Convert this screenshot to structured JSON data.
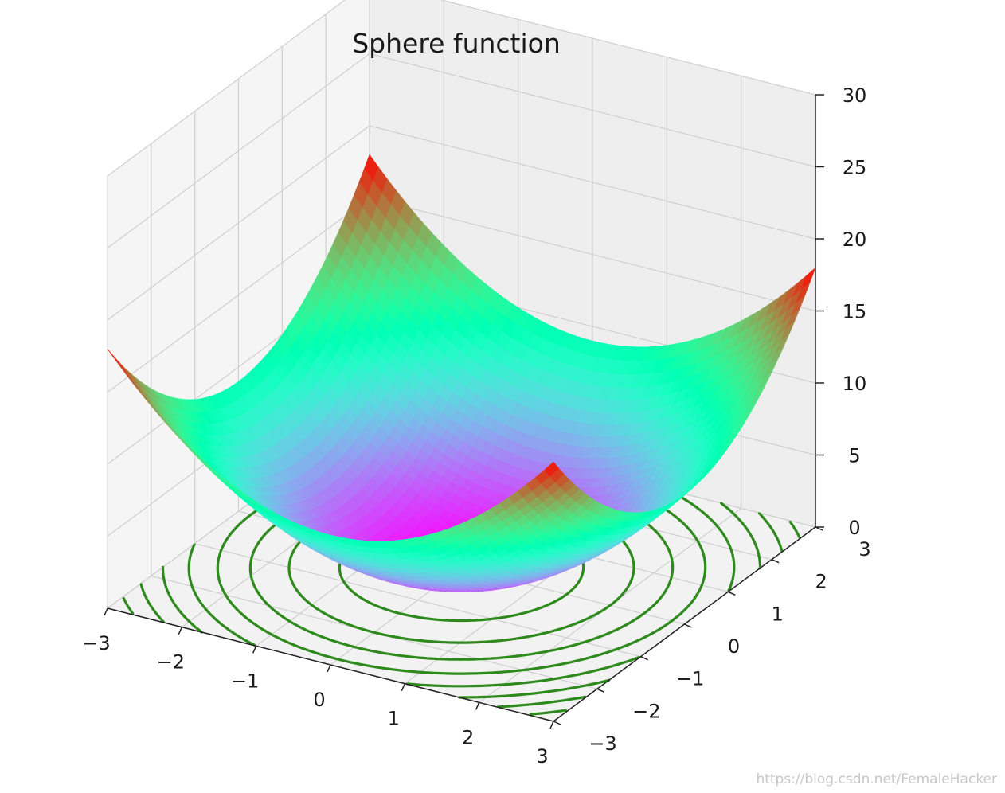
{
  "chart_data": {
    "type": "surface3d",
    "title": "Sphere function",
    "function": "z = x^2 + y^2",
    "xlim": [
      -3,
      3
    ],
    "ylim": [
      -3,
      3
    ],
    "zlim": [
      0,
      30
    ],
    "x_ticks": [
      "−3",
      "−2",
      "−1",
      "0",
      "1",
      "2",
      "3"
    ],
    "y_ticks": [
      "−3",
      "−2",
      "−1",
      "0",
      "1",
      "2",
      "3"
    ],
    "z_ticks": [
      "0",
      "5",
      "10",
      "15",
      "20",
      "25",
      "30"
    ],
    "grid": true,
    "colormap": "rainbow",
    "contour": {
      "offset_z": 0,
      "color": "#2f8a1d",
      "levels": [
        2,
        4,
        6,
        8,
        10,
        12,
        14,
        16
      ]
    },
    "surface_corners": [
      {
        "x": -3,
        "y": -3,
        "z": 18
      },
      {
        "x": 3,
        "y": -3,
        "z": 18
      },
      {
        "x": -3,
        "y": 3,
        "z": 18
      },
      {
        "x": 3,
        "y": 3,
        "z": 18
      }
    ]
  },
  "watermark": "https://blog.csdn.net/FemaleHacker"
}
